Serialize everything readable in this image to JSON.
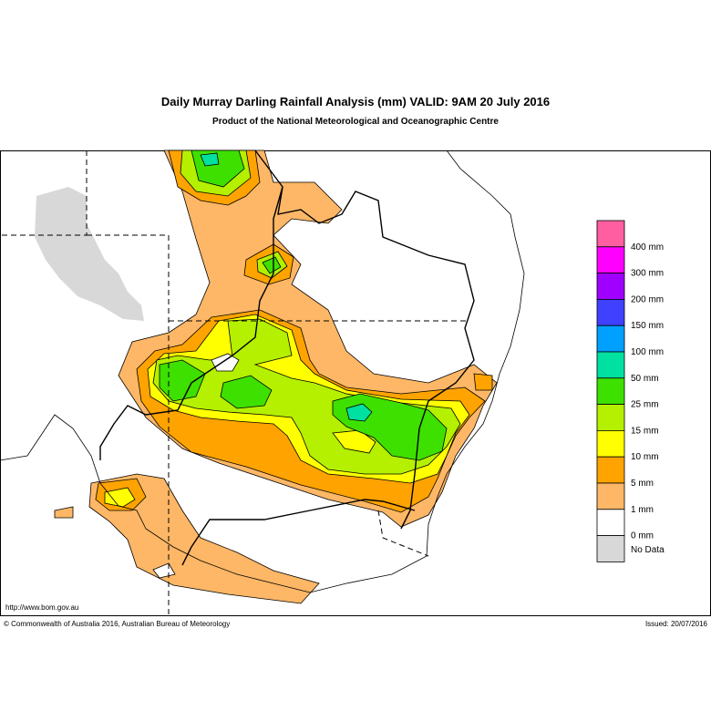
{
  "header": {
    "title": "Daily Murray Darling Rainfall Analysis (mm)  VALID: 9AM 20 July 2016",
    "subtitle": "Product of the National Meteorological and Oceanographic Centre"
  },
  "legend": {
    "colors": [
      "#ff5fa0",
      "#ff00ff",
      "#a000ff",
      "#4040ff",
      "#00a0ff",
      "#00e0a0",
      "#3ee000",
      "#b4f000",
      "#ffff00",
      "#ffa300",
      "#fdb766",
      "#ffffff",
      "#d8d8d8"
    ],
    "labels": [
      "400 mm",
      "300 mm",
      "200 mm",
      "150 mm",
      "100 mm",
      "50 mm",
      "25 mm",
      "15 mm",
      "10 mm",
      "5 mm",
      "1 mm",
      "0 mm",
      "No Data"
    ]
  },
  "footer": {
    "url": "http://www.bom.gov.au",
    "copyright": "© Commonwealth of Australia 2016, Australian Bureau of Meteorology",
    "issued": "Issued: 20/07/2016"
  }
}
